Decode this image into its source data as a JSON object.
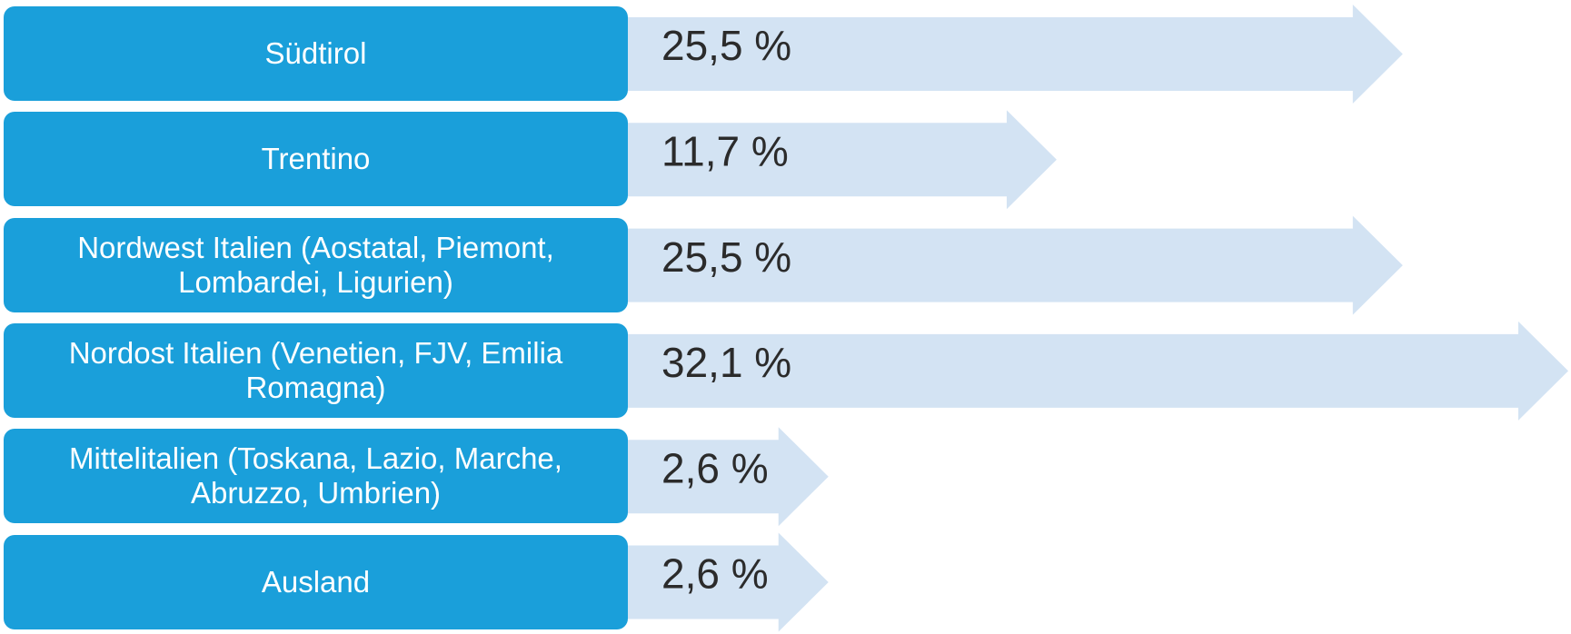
{
  "chart_data": {
    "type": "bar",
    "orientation": "horizontal",
    "categories": [
      "Südtirol",
      "Trentino",
      "Nordwest Italien (Aostatal, Piemont, Lombardei, Ligurien)",
      "Nordost Italien (Venetien, FJV, Emilia Romagna)",
      "Mittelitalien (Toskana, Lazio, Marche, Abruzzo, Umbrien)",
      "Ausland"
    ],
    "values": [
      25.5,
      11.7,
      25.5,
      32.1,
      2.6,
      2.6
    ],
    "value_labels": [
      "25,5 %",
      "11,7 %",
      "25,5 %",
      "32,1 %",
      "2,6 %",
      "2,6 %"
    ],
    "color": "#d3e3f3",
    "label_color": "#1a9fda"
  }
}
